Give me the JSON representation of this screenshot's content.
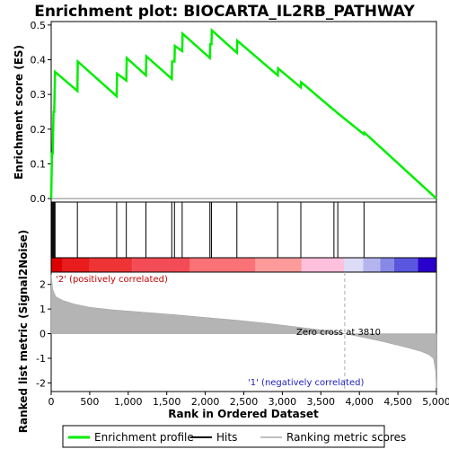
{
  "chart_data": {
    "type": "line",
    "title": "Enrichment plot: BIOCARTA_IL2RB_PATHWAY",
    "top_panel": {
      "ylabel": "Enrichment score (ES)",
      "ylim": [
        -0.01,
        0.51
      ],
      "yticks": [
        0.0,
        0.1,
        0.2,
        0.3,
        0.4,
        0.5
      ],
      "ytick_labels": [
        "0.0",
        "0.1",
        "0.2",
        "0.3",
        "0.4",
        "0.5"
      ],
      "series": [
        {
          "name": "Enrichment profile",
          "color": "#00ee00",
          "x": [
            0,
            10,
            20,
            30,
            40,
            50,
            340,
            345,
            850,
            855,
            975,
            980,
            1230,
            1235,
            1565,
            1570,
            1600,
            1605,
            1700,
            1705,
            2060,
            2065,
            2080,
            2085,
            2410,
            2415,
            2940,
            2945,
            3240,
            3245,
            3670,
            3675,
            3720,
            3725,
            4060,
            4065,
            5000
          ],
          "y": [
            0.0,
            0.13,
            0.13,
            0.25,
            0.25,
            0.365,
            0.31,
            0.395,
            0.295,
            0.36,
            0.34,
            0.405,
            0.355,
            0.41,
            0.345,
            0.395,
            0.395,
            0.44,
            0.425,
            0.475,
            0.405,
            0.445,
            0.445,
            0.485,
            0.42,
            0.455,
            0.355,
            0.375,
            0.32,
            0.335,
            0.255,
            0.255,
            0.245,
            0.245,
            0.185,
            0.19,
            0.0
          ]
        }
      ]
    },
    "hits": [
      10,
      20,
      30,
      40,
      50,
      340,
      850,
      975,
      1230,
      1565,
      1600,
      1700,
      2060,
      2080,
      2410,
      2940,
      3240,
      3670,
      3720,
      4060
    ],
    "bottom_panel": {
      "ylabel": "Ranked list metric (Signal2Noise)",
      "xlabel": "Rank in Ordered Dataset",
      "ylim": [
        -2.35,
        2.5
      ],
      "yticks": [
        -2,
        -1,
        0,
        1,
        2
      ],
      "ytick_labels": [
        "-2",
        "-1",
        "0",
        "1",
        "2"
      ],
      "metric_curve": {
        "x": [
          0,
          20,
          60,
          150,
          300,
          500,
          800,
          1200,
          1600,
          2000,
          2400,
          2800,
          3200,
          3500,
          3810,
          4000,
          4300,
          4600,
          4800,
          4900,
          4960,
          4990,
          5000
        ],
        "y": [
          2.4,
          1.8,
          1.5,
          1.35,
          1.2,
          1.07,
          0.97,
          0.87,
          0.77,
          0.66,
          0.55,
          0.42,
          0.27,
          0.15,
          0.0,
          -0.12,
          -0.32,
          -0.55,
          -0.72,
          -0.85,
          -1.0,
          -1.5,
          -2.2
        ]
      },
      "annotations": {
        "positive": "'2' (positively correlated)",
        "negative": "'1' (negatively correlated)",
        "zero_cross": "Zero cross at 3810"
      },
      "zero_cross_x": 3810
    },
    "xlim": [
      0,
      5000
    ],
    "xticks": [
      0,
      500,
      1000,
      1500,
      2000,
      2500,
      3000,
      3500,
      4000,
      4500,
      5000
    ],
    "xtick_labels": [
      "0",
      "500",
      "1,000",
      "1,500",
      "2,000",
      "2,500",
      "3,000",
      "3,500",
      "4,000",
      "4,500",
      "5,000"
    ],
    "color_bar": {
      "segments": [
        {
          "end": 150,
          "color": "#dd0000"
        },
        {
          "end": 500,
          "color": "#e81c1c"
        },
        {
          "end": 1050,
          "color": "#ee3434"
        },
        {
          "end": 1800,
          "color": "#f44c56"
        },
        {
          "end": 2650,
          "color": "#fb7377"
        },
        {
          "end": 3250,
          "color": "#fd9a9a"
        },
        {
          "end": 3800,
          "color": "#ffc0dc"
        },
        {
          "end": 4050,
          "color": "#dcdcf6"
        },
        {
          "end": 4270,
          "color": "#b4b4ee"
        },
        {
          "end": 4450,
          "color": "#8888e6"
        },
        {
          "end": 4760,
          "color": "#5a56e0"
        },
        {
          "end": 5000,
          "color": "#2a00cc"
        }
      ]
    },
    "legend": {
      "placement": "bottom",
      "items": [
        {
          "label": "Enrichment profile",
          "color": "#00ee00"
        },
        {
          "label": "Hits",
          "color": "#000000"
        },
        {
          "label": "Ranking metric scores",
          "color": "#c0c0c0"
        }
      ]
    },
    "grid": false
  }
}
